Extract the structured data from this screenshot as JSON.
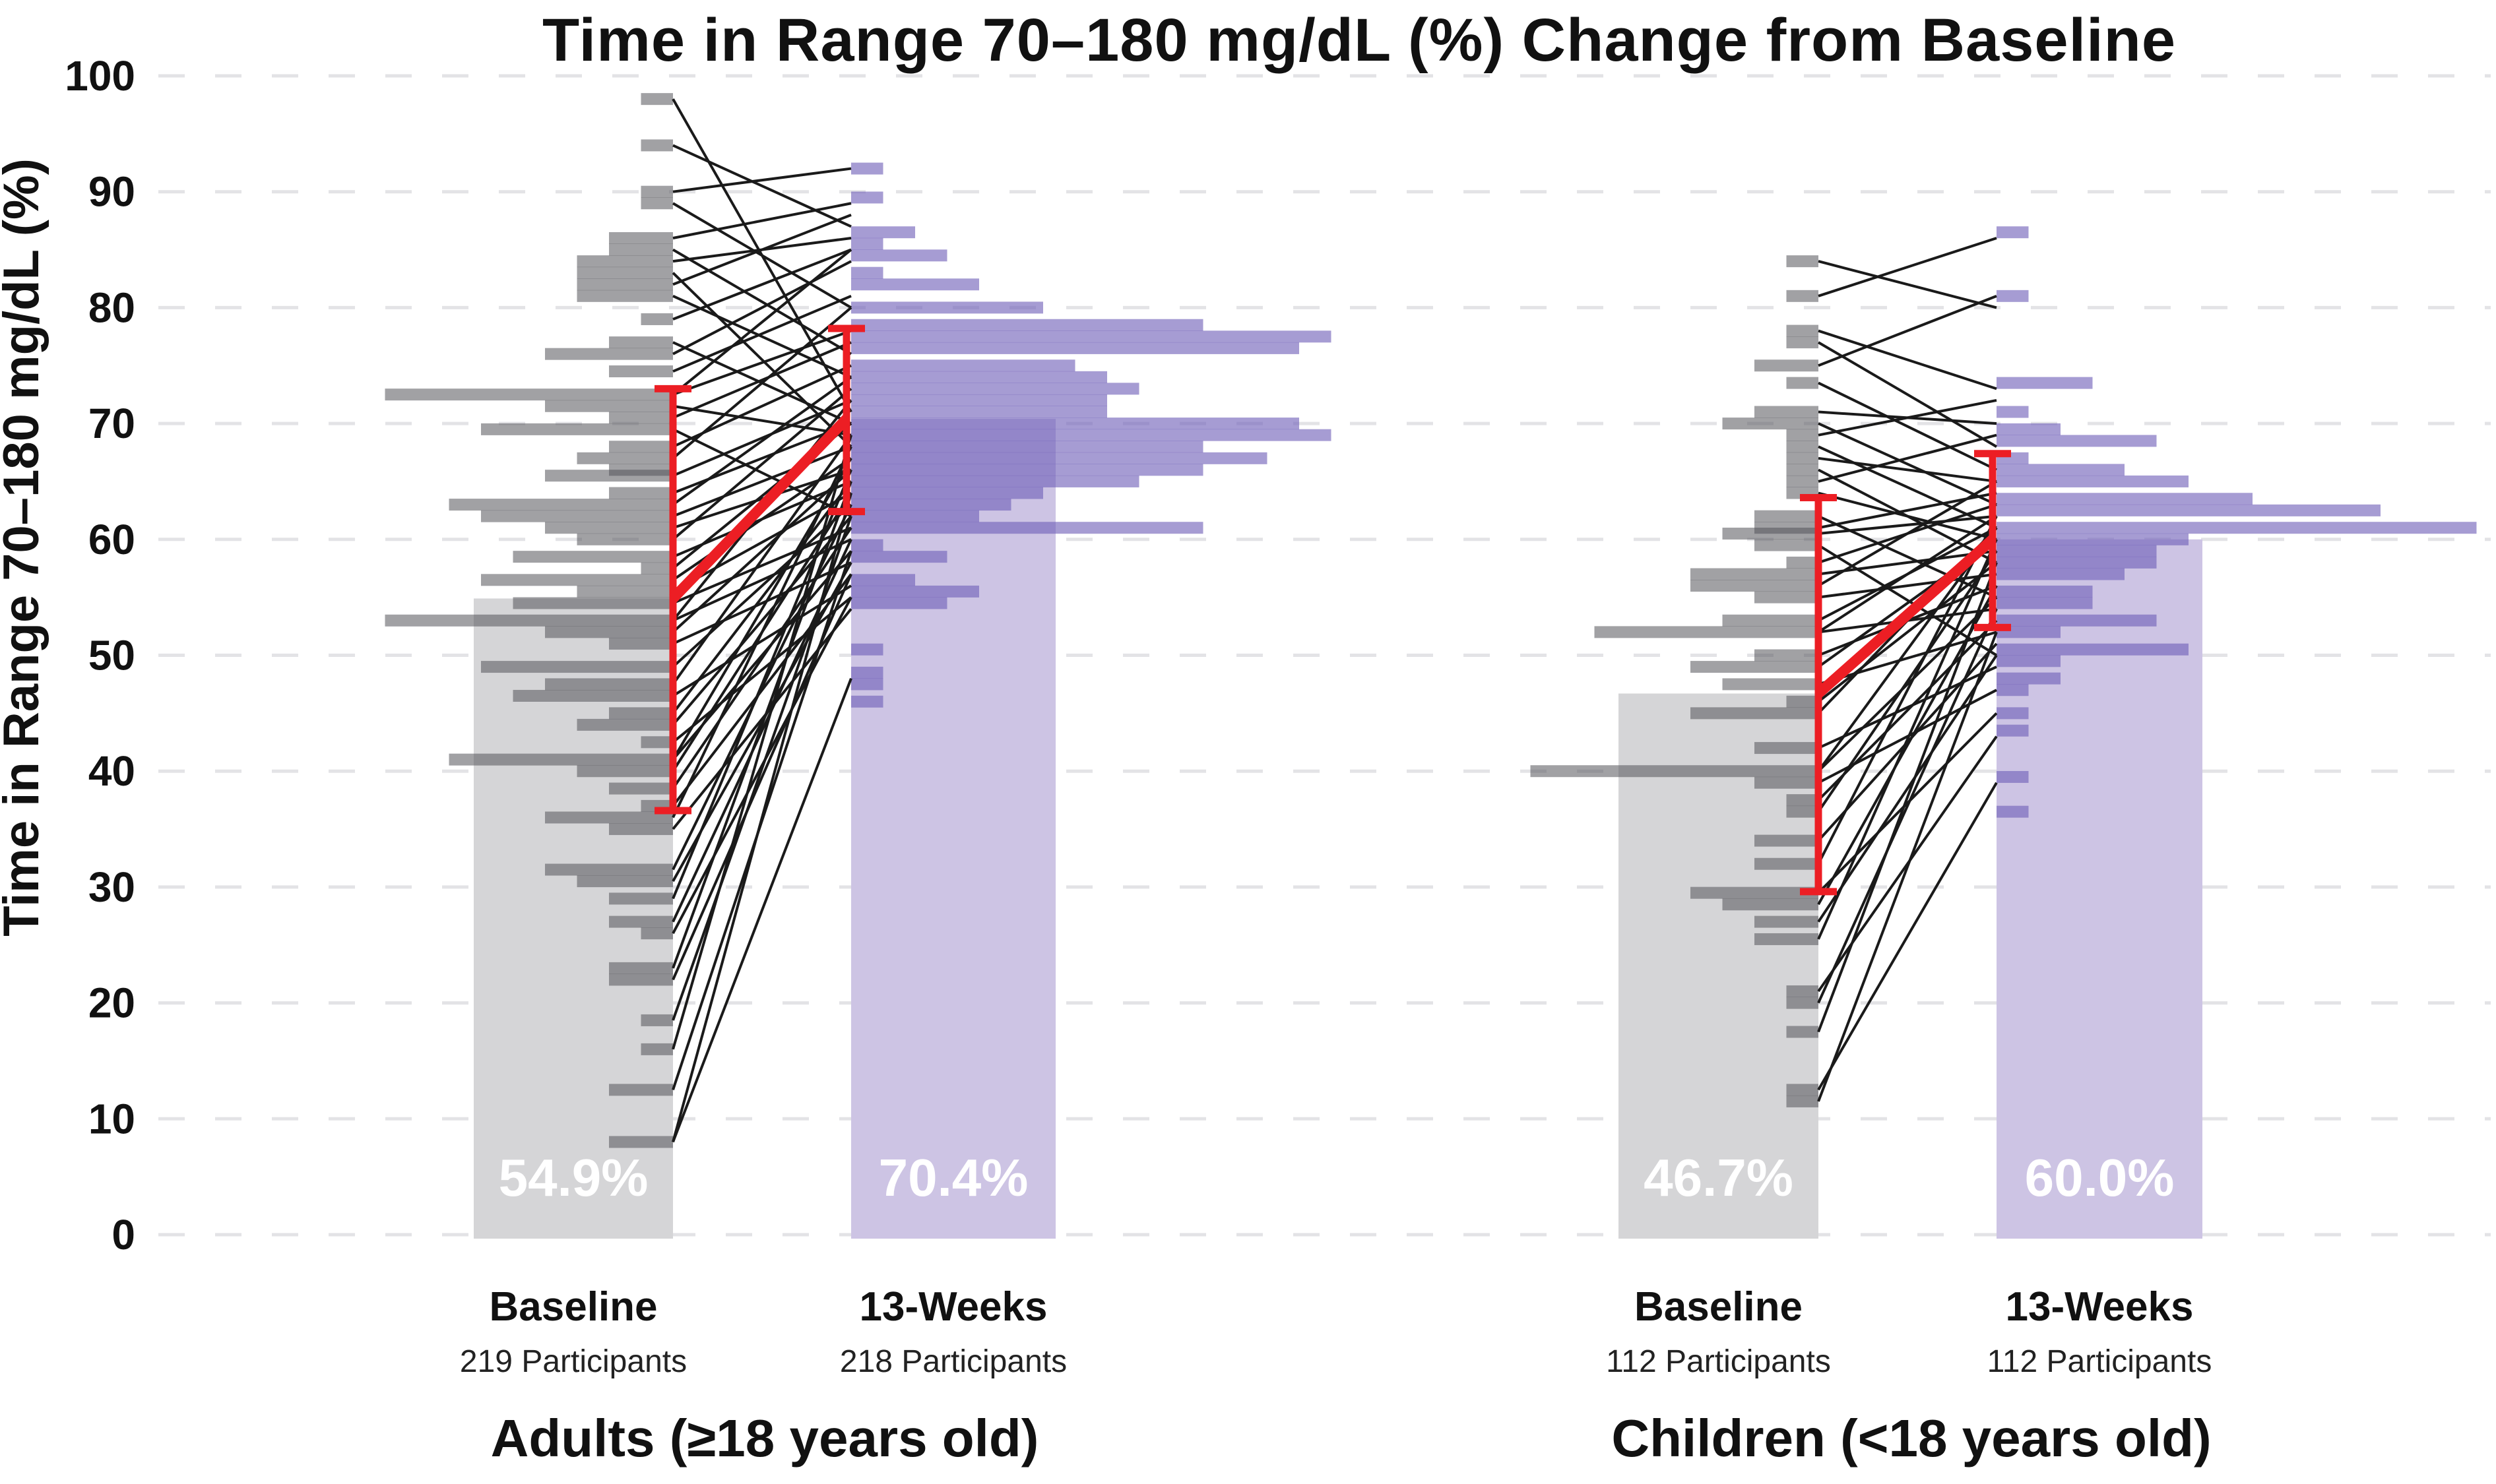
{
  "colors": {
    "background": "#ffffff",
    "grid": "#e3e3e6",
    "text": "#111111",
    "subtext": "#222222",
    "baseline_hist_fill": "#54545a",
    "baseline_hist_opacity": 0.55,
    "baseline_mean_bar": "#d5d5d7",
    "week13_hist_fill": "#6f5fb8",
    "week13_hist_opacity": 0.62,
    "week13_mean_bar": "#cdc4e4",
    "error_bar_red": "#ec1e24",
    "participant_line": "#1a1a1a",
    "mean_value_text": "#ffffff"
  },
  "chart_data": {
    "type": "bar",
    "subtype": "mirrored 1%-bin histograms with paired participant slope lines, mean bars and mean±SD whiskers",
    "title": "Time in Range 70–180 mg/dL (%) Change from Baseline",
    "ylabel": "Time in Range 70–180 mg/dL (%)",
    "ylim": [
      0,
      100
    ],
    "yticks": [
      0,
      10,
      20,
      30,
      40,
      50,
      60,
      70,
      80,
      90,
      100
    ],
    "grid": "dashed horizontal",
    "legend": "none",
    "value_units": "Time in Range 70–180 mg/dL (%)",
    "bar_length_unit": "participants",
    "panels": [
      {
        "group_label": "Adults (≥18 years old)",
        "baseline": {
          "label": "Baseline",
          "sublabel": "219 Participants",
          "mean": 54.9,
          "mean_label": "54.9%",
          "whisker_low": 36.6,
          "whisker_high": 73.0,
          "histogram": [
            [
              98,
              1
            ],
            [
              94,
              1
            ],
            [
              90,
              1
            ],
            [
              89,
              1
            ],
            [
              86,
              2
            ],
            [
              85,
              2
            ],
            [
              84,
              3
            ],
            [
              83,
              3
            ],
            [
              82,
              3
            ],
            [
              81,
              3
            ],
            [
              79,
              1
            ],
            [
              77,
              2
            ],
            [
              76,
              4
            ],
            [
              74.5,
              2
            ],
            [
              72.5,
              9
            ],
            [
              71.5,
              4
            ],
            [
              70.5,
              2
            ],
            [
              69.5,
              6
            ],
            [
              68,
              2
            ],
            [
              67,
              3
            ],
            [
              66,
              2
            ],
            [
              65.5,
              4
            ],
            [
              64,
              2
            ],
            [
              63,
              7
            ],
            [
              62,
              6
            ],
            [
              61,
              4
            ],
            [
              60,
              3
            ],
            [
              58.5,
              5
            ],
            [
              57.5,
              1
            ],
            [
              56.5,
              6
            ],
            [
              55.5,
              3
            ],
            [
              54.5,
              5
            ],
            [
              53,
              9
            ],
            [
              52,
              4
            ],
            [
              51,
              2
            ],
            [
              49,
              6
            ],
            [
              47.5,
              4
            ],
            [
              46.5,
              5
            ],
            [
              45,
              2
            ],
            [
              44,
              3
            ],
            [
              42.5,
              1
            ],
            [
              41,
              7
            ],
            [
              40,
              3
            ],
            [
              38.5,
              2
            ],
            [
              37,
              1
            ],
            [
              36,
              4
            ],
            [
              35,
              2
            ],
            [
              31.5,
              4
            ],
            [
              30.5,
              3
            ],
            [
              29,
              2
            ],
            [
              27,
              2
            ],
            [
              26,
              1
            ],
            [
              23,
              2
            ],
            [
              22,
              2
            ],
            [
              18.5,
              1
            ],
            [
              16,
              1
            ],
            [
              12.5,
              2
            ],
            [
              8,
              2
            ]
          ]
        },
        "week13": {
          "label": "13-Weeks",
          "sublabel": "218 Participants",
          "mean": 70.4,
          "mean_label": "70.4%",
          "whisker_low": 62.4,
          "whisker_high": 78.2,
          "histogram": [
            [
              92,
              1
            ],
            [
              89.5,
              1
            ],
            [
              86.5,
              2
            ],
            [
              85.5,
              1
            ],
            [
              84.5,
              3
            ],
            [
              83,
              1
            ],
            [
              82,
              4
            ],
            [
              80,
              6
            ],
            [
              78.5,
              11
            ],
            [
              77.5,
              15
            ],
            [
              76.5,
              14
            ],
            [
              75,
              7
            ],
            [
              74,
              8
            ],
            [
              73,
              9
            ],
            [
              72,
              8
            ],
            [
              71,
              8
            ],
            [
              70,
              14
            ],
            [
              69,
              15
            ],
            [
              68,
              11
            ],
            [
              67,
              13
            ],
            [
              66,
              11
            ],
            [
              65,
              9
            ],
            [
              64,
              6
            ],
            [
              63,
              5
            ],
            [
              62,
              4
            ],
            [
              61,
              11
            ],
            [
              59.5,
              1
            ],
            [
              58.5,
              3
            ],
            [
              56.5,
              2
            ],
            [
              55.5,
              4
            ],
            [
              54.5,
              3
            ],
            [
              50.5,
              1
            ],
            [
              48.5,
              1
            ],
            [
              47.5,
              1
            ],
            [
              46,
              1
            ]
          ]
        },
        "participant_lines": [
          [
            98,
            71
          ],
          [
            94,
            87
          ],
          [
            90,
            92
          ],
          [
            89,
            80
          ],
          [
            86,
            89
          ],
          [
            85,
            76
          ],
          [
            84,
            86
          ],
          [
            83,
            68
          ],
          [
            82,
            88
          ],
          [
            81,
            74
          ],
          [
            79,
            85
          ],
          [
            77,
            70
          ],
          [
            76,
            84
          ],
          [
            74.5,
            81
          ],
          [
            72.5,
            78
          ],
          [
            72.5,
            85
          ],
          [
            71.5,
            69
          ],
          [
            70.5,
            77
          ],
          [
            69.5,
            62
          ],
          [
            68,
            75
          ],
          [
            67,
            80
          ],
          [
            65.5,
            72
          ],
          [
            64,
            70
          ],
          [
            63,
            74
          ],
          [
            62,
            68
          ],
          [
            61,
            66
          ],
          [
            60,
            73
          ],
          [
            58.5,
            65
          ],
          [
            57.5,
            70
          ],
          [
            56.5,
            67
          ],
          [
            55.5,
            64
          ],
          [
            54.5,
            61
          ],
          [
            53,
            72
          ],
          [
            53,
            60
          ],
          [
            52,
            66
          ],
          [
            51,
            58
          ],
          [
            49,
            63
          ],
          [
            47.5,
            69
          ],
          [
            46.5,
            56
          ],
          [
            45,
            65
          ],
          [
            44,
            62
          ],
          [
            42.5,
            55
          ],
          [
            41,
            67
          ],
          [
            41,
            59
          ],
          [
            40,
            64
          ],
          [
            38.5,
            61
          ],
          [
            37,
            57
          ],
          [
            36,
            68
          ],
          [
            35,
            54
          ],
          [
            31.5,
            63
          ],
          [
            30.5,
            58
          ],
          [
            29,
            66
          ],
          [
            27,
            60
          ],
          [
            26,
            55
          ],
          [
            23,
            65
          ],
          [
            22,
            57
          ],
          [
            18.5,
            62
          ],
          [
            16,
            69
          ],
          [
            12.5,
            59
          ],
          [
            8,
            64
          ],
          [
            8,
            48
          ]
        ]
      },
      {
        "group_label": "Children (<18 years old)",
        "baseline": {
          "label": "Baseline",
          "sublabel": "112 Participants",
          "mean": 46.7,
          "mean_label": "46.7%",
          "whisker_low": 29.6,
          "whisker_high": 63.6,
          "histogram": [
            [
              84,
              1
            ],
            [
              81,
              1
            ],
            [
              78,
              1
            ],
            [
              77,
              1
            ],
            [
              75,
              2
            ],
            [
              73.5,
              1
            ],
            [
              71,
              2
            ],
            [
              70,
              3
            ],
            [
              69,
              1
            ],
            [
              68,
              1
            ],
            [
              67,
              1
            ],
            [
              66,
              1
            ],
            [
              65,
              1
            ],
            [
              64,
              1
            ],
            [
              62,
              2
            ],
            [
              61,
              2
            ],
            [
              60.5,
              3
            ],
            [
              59.5,
              2
            ],
            [
              58,
              1
            ],
            [
              57,
              4
            ],
            [
              56,
              4
            ],
            [
              55,
              2
            ],
            [
              53,
              3
            ],
            [
              52,
              7
            ],
            [
              50,
              2
            ],
            [
              49,
              4
            ],
            [
              47.5,
              3
            ],
            [
              46,
              1
            ],
            [
              45,
              4
            ],
            [
              42,
              2
            ],
            [
              40,
              9
            ],
            [
              39,
              2
            ],
            [
              37.5,
              1
            ],
            [
              36.5,
              1
            ],
            [
              34,
              2
            ],
            [
              32,
              2
            ],
            [
              29.5,
              4
            ],
            [
              28.5,
              3
            ],
            [
              27,
              2
            ],
            [
              25.5,
              2
            ],
            [
              21,
              1
            ],
            [
              20,
              1
            ],
            [
              17.5,
              1
            ],
            [
              12.5,
              1
            ],
            [
              11.5,
              1
            ]
          ]
        },
        "week13": {
          "label": "13-Weeks",
          "sublabel": "112 Participants",
          "mean": 60.0,
          "mean_label": "60.0%",
          "whisker_low": 52.4,
          "whisker_high": 67.4,
          "histogram": [
            [
              86.5,
              1
            ],
            [
              81,
              1
            ],
            [
              73.5,
              3
            ],
            [
              71,
              1
            ],
            [
              69.5,
              2
            ],
            [
              68.5,
              5
            ],
            [
              67,
              1
            ],
            [
              66,
              4
            ],
            [
              65,
              6
            ],
            [
              63.5,
              8
            ],
            [
              62.5,
              12
            ],
            [
              61,
              15
            ],
            [
              60,
              6
            ],
            [
              59,
              5
            ],
            [
              58,
              5
            ],
            [
              57,
              4
            ],
            [
              55.5,
              3
            ],
            [
              54.5,
              3
            ],
            [
              53,
              5
            ],
            [
              52,
              2
            ],
            [
              50.5,
              6
            ],
            [
              49.5,
              2
            ],
            [
              48,
              2
            ],
            [
              47,
              1
            ],
            [
              45,
              1
            ],
            [
              43.5,
              1
            ],
            [
              39.5,
              1
            ],
            [
              36.5,
              1
            ]
          ]
        },
        "participant_lines": [
          [
            84,
            80
          ],
          [
            81,
            86
          ],
          [
            78,
            73
          ],
          [
            77,
            68
          ],
          [
            75,
            81
          ],
          [
            73.5,
            66
          ],
          [
            71,
            70
          ],
          [
            70,
            63
          ],
          [
            69,
            72
          ],
          [
            68,
            61
          ],
          [
            67,
            65
          ],
          [
            66,
            58
          ],
          [
            65,
            69
          ],
          [
            64,
            60
          ],
          [
            62,
            55
          ],
          [
            61,
            64
          ],
          [
            60.5,
            62
          ],
          [
            59.5,
            50
          ],
          [
            58,
            63
          ],
          [
            57,
            59
          ],
          [
            56,
            65
          ],
          [
            55,
            57
          ],
          [
            53,
            61
          ],
          [
            52,
            54
          ],
          [
            52,
            62
          ],
          [
            50,
            56
          ],
          [
            49,
            60
          ],
          [
            47.5,
            52
          ],
          [
            46,
            58
          ],
          [
            45,
            61
          ],
          [
            42,
            49
          ],
          [
            40,
            61
          ],
          [
            40,
            55
          ],
          [
            39,
            47
          ],
          [
            37.5,
            53
          ],
          [
            36.5,
            59
          ],
          [
            34,
            51
          ],
          [
            32,
            62
          ],
          [
            29.5,
            45
          ],
          [
            28.5,
            56
          ],
          [
            27,
            50
          ],
          [
            25.5,
            60
          ],
          [
            21,
            43
          ],
          [
            20,
            54
          ],
          [
            17.5,
            58
          ],
          [
            12.5,
            39
          ],
          [
            11.5,
            52
          ]
        ]
      }
    ]
  }
}
